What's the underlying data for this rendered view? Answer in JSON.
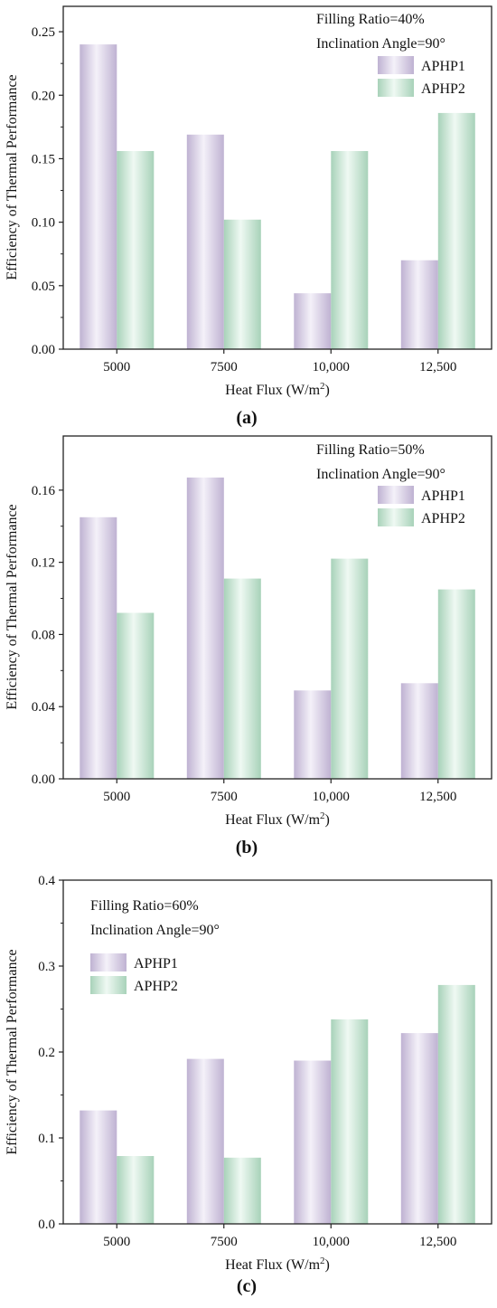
{
  "chart_data": [
    {
      "type": "bar",
      "panel_label": "(a)",
      "categories": [
        "5000",
        "7500",
        "10,000",
        "12,500"
      ],
      "series": [
        {
          "name": "APHP1",
          "values": [
            0.24,
            0.169,
            0.044,
            0.07
          ],
          "color": "#cdbfe2"
        },
        {
          "name": "APHP2",
          "values": [
            0.156,
            0.102,
            0.156,
            0.186
          ],
          "color": "#b5e2c7"
        }
      ],
      "annotations": [
        "Filling Ratio=40%",
        "Inclination Angle=90°"
      ],
      "xlabel": "Heat Flux (W/m²)",
      "ylabel": "Efficiency of Thermal Performance",
      "ylim": [
        0,
        0.27
      ],
      "yticks": [
        0.0,
        0.05,
        0.1,
        0.15,
        0.2,
        0.25
      ],
      "ytick_labels": [
        "0.00",
        "0.05",
        "0.10",
        "0.15",
        "0.20",
        "0.25"
      ],
      "legend": "top-right",
      "grid": false
    },
    {
      "type": "bar",
      "panel_label": "(b)",
      "categories": [
        "5000",
        "7500",
        "10,000",
        "12,500"
      ],
      "series": [
        {
          "name": "APHP1",
          "values": [
            0.145,
            0.167,
            0.049,
            0.053
          ],
          "color": "#cdbfe2"
        },
        {
          "name": "APHP2",
          "values": [
            0.092,
            0.111,
            0.122,
            0.105
          ],
          "color": "#b5e2c7"
        }
      ],
      "annotations": [
        "Filling Ratio=50%",
        "Inclination Angle=90°"
      ],
      "xlabel": "Heat Flux (W/m²)",
      "ylabel": "Efficiency of Thermal Performance",
      "ylim": [
        0,
        0.19
      ],
      "yticks": [
        0.0,
        0.04,
        0.08,
        0.12,
        0.16
      ],
      "ytick_labels": [
        "0.00",
        "0.04",
        "0.08",
        "0.12",
        "0.16"
      ],
      "legend": "top-right",
      "grid": false
    },
    {
      "type": "bar",
      "panel_label": "(c)",
      "categories": [
        "5000",
        "7500",
        "10,000",
        "12,500"
      ],
      "series": [
        {
          "name": "APHP1",
          "values": [
            0.132,
            0.192,
            0.19,
            0.222
          ],
          "color": "#cdbfe2"
        },
        {
          "name": "APHP2",
          "values": [
            0.079,
            0.077,
            0.238,
            0.278
          ],
          "color": "#b5e2c7"
        }
      ],
      "annotations": [
        "Filling Ratio=60%",
        "Inclination Angle=90°"
      ],
      "xlabel": "Heat Flux (W/m²)",
      "ylabel": "Efficiency of Thermal Performance",
      "ylim": [
        0,
        0.4
      ],
      "yticks": [
        0.0,
        0.1,
        0.2,
        0.3,
        0.4
      ],
      "ytick_labels": [
        "0.0",
        "0.1",
        "0.2",
        "0.3",
        "0.4"
      ],
      "legend": "top-left",
      "grid": false
    }
  ]
}
